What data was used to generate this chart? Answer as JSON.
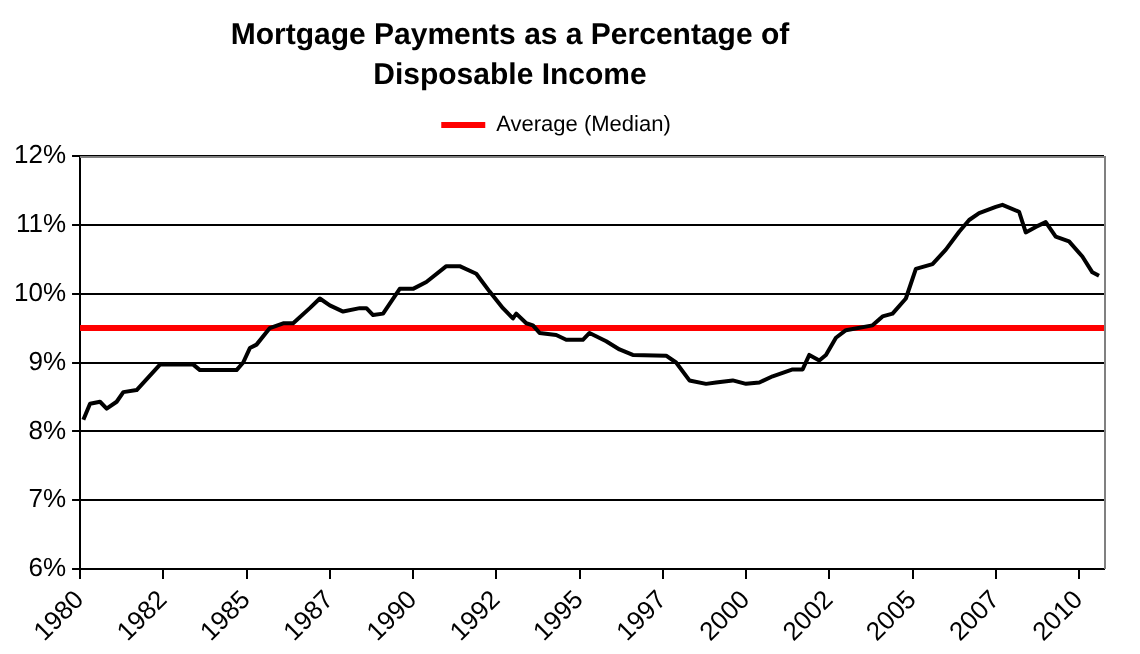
{
  "chart_data": {
    "type": "line",
    "title": "Mortgage Payments as a Percentage of Disposable Income",
    "series": [
      {
        "color": "#000000",
        "x": [
          1980.1,
          1980.3,
          1980.6,
          1980.8,
          1981.1,
          1981.3,
          1981.7,
          1982.4,
          1983.4,
          1983.6,
          1984.7,
          1984.9,
          1985.1,
          1985.3,
          1985.7,
          1986.1,
          1986.4,
          1986.9,
          1987.2,
          1987.5,
          1987.9,
          1988.4,
          1988.6,
          1988.8,
          1989.1,
          1989.6,
          1990.0,
          1990.4,
          1991.0,
          1991.4,
          1991.9,
          1992.3,
          1992.7,
          1993.0,
          1993.1,
          1993.4,
          1993.6,
          1993.8,
          1994.3,
          1994.6,
          1995.1,
          1995.3,
          1995.8,
          1996.2,
          1996.6,
          1997.6,
          1997.9,
          1998.3,
          1998.8,
          1999.1,
          1999.6,
          2000.0,
          2000.4,
          2000.8,
          2001.4,
          2001.7,
          2001.9,
          2002.2,
          2002.4,
          2002.7,
          2003.0,
          2003.8,
          2004.1,
          2004.4,
          2004.8,
          2005.1,
          2005.6,
          2006.0,
          2006.4,
          2006.7,
          2007.0,
          2007.5,
          2007.7,
          2008.2,
          2008.4,
          2008.7,
          2009.0,
          2009.3,
          2009.7,
          2010.1,
          2010.4,
          2010.6
        ],
        "values": [
          8.17,
          8.4,
          8.43,
          8.33,
          8.43,
          8.57,
          8.6,
          8.97,
          8.97,
          8.89,
          8.89,
          9.0,
          9.21,
          9.26,
          9.5,
          9.57,
          9.57,
          9.79,
          9.93,
          9.83,
          9.74,
          9.79,
          9.79,
          9.69,
          9.71,
          10.07,
          10.07,
          10.17,
          10.4,
          10.4,
          10.29,
          10.03,
          9.79,
          9.64,
          9.71,
          9.57,
          9.54,
          9.43,
          9.4,
          9.33,
          9.33,
          9.43,
          9.31,
          9.19,
          9.11,
          9.1,
          9.0,
          8.74,
          8.69,
          8.71,
          8.74,
          8.69,
          8.71,
          8.8,
          8.9,
          8.9,
          9.11,
          9.03,
          9.11,
          9.36,
          9.47,
          9.54,
          9.67,
          9.71,
          9.93,
          10.36,
          10.43,
          10.64,
          10.9,
          11.07,
          11.17,
          11.26,
          11.29,
          11.19,
          10.89,
          10.97,
          11.04,
          10.83,
          10.76,
          10.54,
          10.31,
          10.26
        ]
      }
    ],
    "ref_lines": [
      {
        "axis": "y",
        "value": 9.5,
        "label": "Average (Median)",
        "color": "#ff0000"
      }
    ],
    "xlim": [
      1980,
      2010.75
    ],
    "xticks": [
      {
        "value": 1980,
        "label": "1980"
      },
      {
        "value": 1982.5,
        "label": "1982"
      },
      {
        "value": 1985,
        "label": "1985"
      },
      {
        "value": 1987.5,
        "label": "1987"
      },
      {
        "value": 1990,
        "label": "1990"
      },
      {
        "value": 1992.5,
        "label": "1992"
      },
      {
        "value": 1995,
        "label": "1995"
      },
      {
        "value": 1997.5,
        "label": "1997"
      },
      {
        "value": 2000,
        "label": "2000"
      },
      {
        "value": 2002.5,
        "label": "2002"
      },
      {
        "value": 2005,
        "label": "2005"
      },
      {
        "value": 2007.5,
        "label": "2007"
      },
      {
        "value": 2010,
        "label": "2010"
      }
    ],
    "ylim": [
      6,
      12
    ],
    "yticks": [
      {
        "value": 6,
        "label": "6%"
      },
      {
        "value": 7,
        "label": "7%"
      },
      {
        "value": 8,
        "label": "8%"
      },
      {
        "value": 9,
        "label": "9%"
      },
      {
        "value": 10,
        "label": "10%"
      },
      {
        "value": 11,
        "label": "11%"
      },
      {
        "value": 12,
        "label": "12%"
      }
    ],
    "grid": "y",
    "legend": "top",
    "marker": "none",
    "line_style": "solid"
  }
}
